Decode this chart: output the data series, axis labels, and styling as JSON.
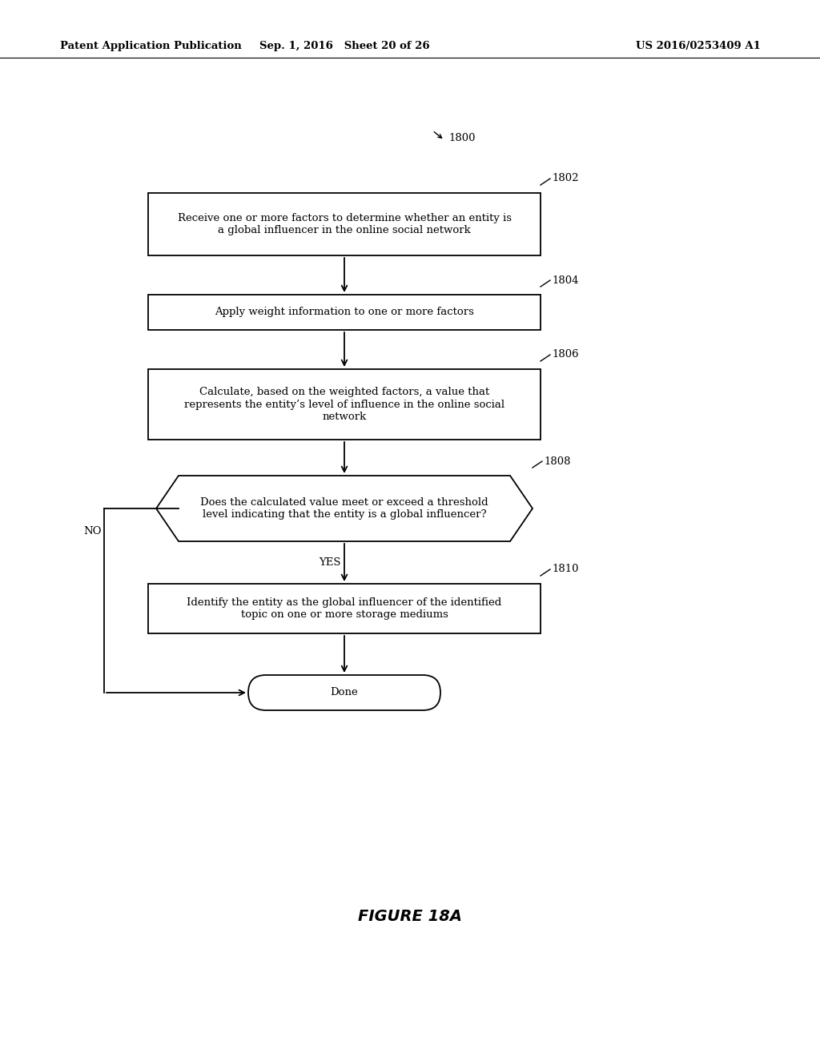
{
  "bg_color": "#ffffff",
  "header_left": "Patent Application Publication",
  "header_mid": "Sep. 1, 2016   Sheet 20 of 26",
  "header_right": "US 2016/0253409 A1",
  "figure_label": "FIGURE 18A",
  "diagram_label": "1800",
  "box1_label": "Receive one or more factors to determine whether an entity is\na global influencer in the online social network",
  "box1_ref": "1802",
  "box2_label": "Apply weight information to one or more factors",
  "box2_ref": "1804",
  "box3_label": "Calculate, based on the weighted factors, a value that\nrepresents the entity’s level of influence in the online social\nnetwork",
  "box3_ref": "1806",
  "diamond_label": "Does the calculated value meet or exceed a threshold\nlevel indicating that the entity is a global influencer?",
  "diamond_ref": "1808",
  "box5_label": "Identify the entity as the global influencer of the identified\ntopic on one or more storage mediums",
  "box5_ref": "1810",
  "done_label": "Done",
  "yes_label": "YES",
  "no_label": "NO",
  "text_fontsize": 9.5,
  "ref_fontsize": 9.5,
  "header_fontsize": 9.5,
  "figure_fontsize": 14
}
